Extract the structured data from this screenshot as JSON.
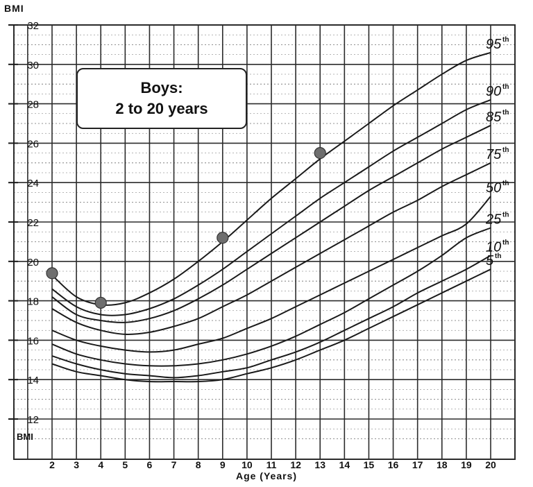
{
  "chart_data": {
    "type": "line",
    "title": "Boys:",
    "subtitle": "2 to 20 years",
    "ylabel_top": "BMI",
    "ylabel_bottom": "BMI",
    "xlabel": "Age (Years)",
    "xlim": [
      1.5,
      21
    ],
    "ylim": [
      11,
      32
    ],
    "x_ticks": [
      2,
      3,
      4,
      5,
      6,
      7,
      8,
      9,
      10,
      11,
      12,
      13,
      14,
      15,
      16,
      17,
      18,
      19,
      20
    ],
    "y_ticks": [
      12,
      14,
      16,
      18,
      20,
      22,
      24,
      26,
      28,
      30,
      32
    ],
    "grid": true,
    "series": [
      {
        "name": "95",
        "suffix": "th",
        "x": [
          2,
          3,
          4,
          5,
          6,
          7,
          8,
          9,
          10,
          11,
          12,
          13,
          14,
          15,
          16,
          17,
          18,
          19,
          20
        ],
        "y": [
          19.3,
          18.2,
          17.8,
          17.9,
          18.4,
          19.1,
          20.0,
          21.0,
          22.1,
          23.2,
          24.2,
          25.2,
          26.1,
          27.0,
          27.9,
          28.7,
          29.5,
          30.2,
          30.6
        ]
      },
      {
        "name": "90",
        "suffix": "th",
        "x": [
          2,
          3,
          4,
          5,
          6,
          7,
          8,
          9,
          10,
          11,
          12,
          13,
          14,
          15,
          16,
          17,
          18,
          19,
          20
        ],
        "y": [
          18.6,
          17.7,
          17.3,
          17.3,
          17.6,
          18.1,
          18.8,
          19.6,
          20.5,
          21.4,
          22.3,
          23.2,
          24.0,
          24.8,
          25.6,
          26.3,
          27.0,
          27.7,
          28.2
        ]
      },
      {
        "name": "85",
        "suffix": "th",
        "x": [
          2,
          3,
          4,
          5,
          6,
          7,
          8,
          9,
          10,
          11,
          12,
          13,
          14,
          15,
          16,
          17,
          18,
          19,
          20
        ],
        "y": [
          18.2,
          17.3,
          17.0,
          16.9,
          17.1,
          17.5,
          18.1,
          18.8,
          19.6,
          20.4,
          21.2,
          22.0,
          22.8,
          23.6,
          24.3,
          25.0,
          25.7,
          26.3,
          26.9
        ]
      },
      {
        "name": "75",
        "suffix": "th",
        "x": [
          2,
          3,
          4,
          5,
          6,
          7,
          8,
          9,
          10,
          11,
          12,
          13,
          14,
          15,
          16,
          17,
          18,
          19,
          20
        ],
        "y": [
          17.6,
          16.9,
          16.5,
          16.3,
          16.4,
          16.7,
          17.1,
          17.7,
          18.3,
          19.0,
          19.7,
          20.4,
          21.1,
          21.8,
          22.5,
          23.1,
          23.8,
          24.4,
          25.0
        ]
      },
      {
        "name": "50",
        "suffix": "th",
        "x": [
          2,
          3,
          4,
          5,
          6,
          7,
          8,
          9,
          10,
          11,
          12,
          13,
          14,
          15,
          16,
          17,
          18,
          19,
          20
        ],
        "y": [
          16.5,
          16.0,
          15.7,
          15.5,
          15.4,
          15.5,
          15.8,
          16.1,
          16.6,
          17.1,
          17.7,
          18.3,
          18.9,
          19.5,
          20.1,
          20.7,
          21.3,
          21.9,
          23.3
        ]
      },
      {
        "name": "25",
        "suffix": "th",
        "x": [
          2,
          3,
          4,
          5,
          6,
          7,
          8,
          9,
          10,
          11,
          12,
          13,
          14,
          15,
          16,
          17,
          18,
          19,
          20
        ],
        "y": [
          15.8,
          15.3,
          15.0,
          14.8,
          14.7,
          14.7,
          14.8,
          15.0,
          15.3,
          15.7,
          16.2,
          16.8,
          17.4,
          18.1,
          18.8,
          19.5,
          20.3,
          21.2,
          21.7
        ]
      },
      {
        "name": "10",
        "suffix": "th",
        "x": [
          2,
          3,
          4,
          5,
          6,
          7,
          8,
          9,
          10,
          11,
          12,
          13,
          14,
          15,
          16,
          17,
          18,
          19,
          20
        ],
        "y": [
          15.2,
          14.8,
          14.5,
          14.3,
          14.2,
          14.1,
          14.2,
          14.4,
          14.6,
          15.0,
          15.4,
          15.9,
          16.5,
          17.1,
          17.7,
          18.4,
          19.0,
          19.6,
          20.3
        ]
      },
      {
        "name": "5",
        "suffix": "th",
        "x": [
          2,
          3,
          4,
          5,
          6,
          7,
          8,
          9,
          10,
          11,
          12,
          13,
          14,
          15,
          16,
          17,
          18,
          19,
          20
        ],
        "y": [
          14.8,
          14.4,
          14.2,
          14.0,
          13.9,
          13.9,
          13.9,
          14.0,
          14.3,
          14.6,
          15.0,
          15.5,
          16.0,
          16.6,
          17.2,
          17.8,
          18.4,
          19.0,
          19.6
        ]
      }
    ],
    "points": [
      {
        "x": 2,
        "y": 19.4
      },
      {
        "x": 4,
        "y": 17.9
      },
      {
        "x": 9,
        "y": 21.2
      },
      {
        "x": 13,
        "y": 25.5
      }
    ],
    "colors": {
      "line": "#1a1a1a",
      "grid": "#2b2b2b",
      "point": "#6e6e6e"
    }
  }
}
